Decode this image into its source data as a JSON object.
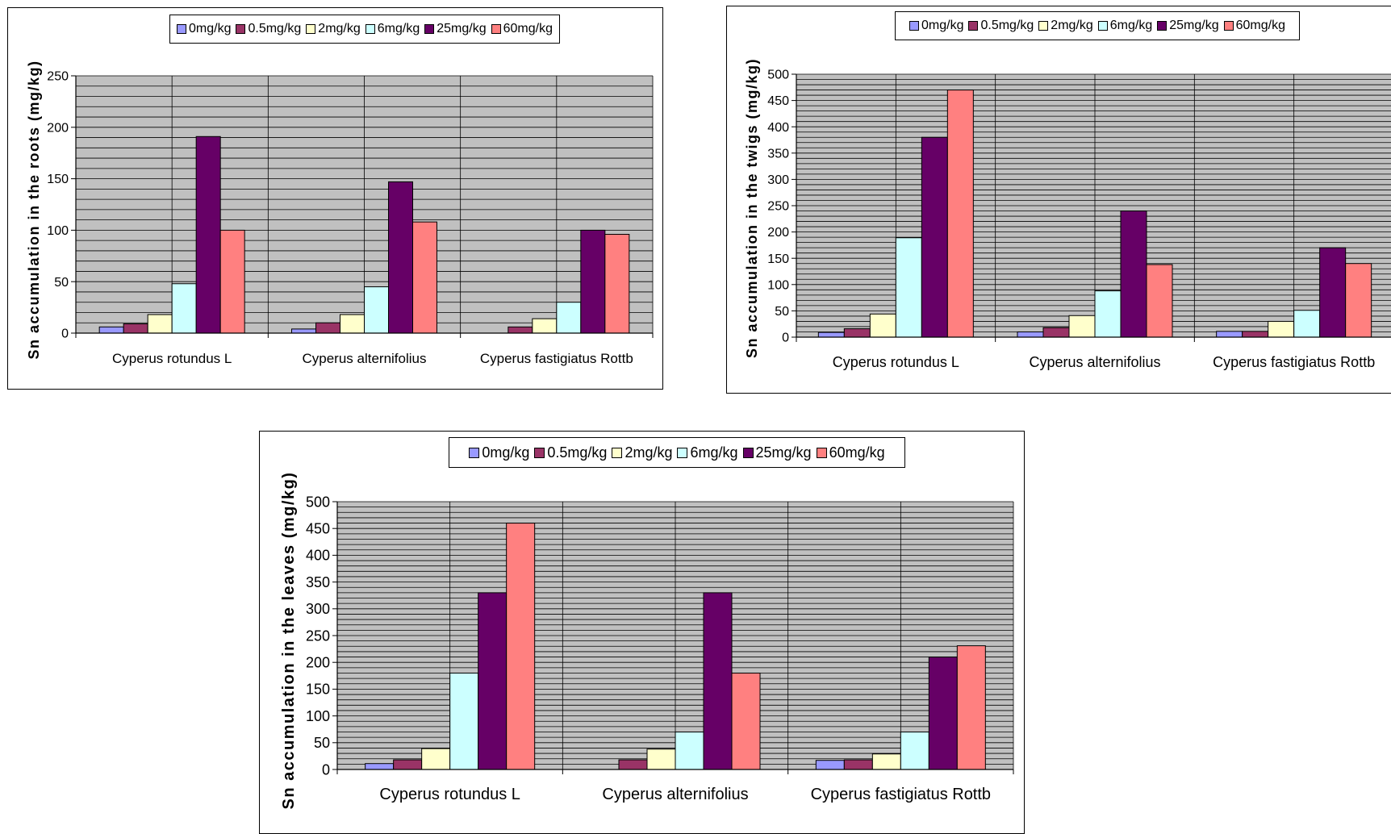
{
  "legend": {
    "series": [
      "0mg/kg",
      "0.5mg/kg",
      "2mg/kg",
      "6mg/kg",
      "25mg/kg",
      "60mg/kg"
    ],
    "colors": [
      "#9999ff",
      "#993366",
      "#ffffcc",
      "#ccffff",
      "#660066",
      "#ff8080"
    ]
  },
  "chart_data": [
    {
      "type": "bar",
      "categories": [
        "Cyperus rotundus L",
        "Cyperus alternifolius",
        "Cyperus fastigiatus Rottb"
      ],
      "ylabel": "Sn accumulation in the roots (mg/kg)",
      "ylim": [
        0,
        250
      ],
      "yticks": [
        0,
        50,
        100,
        150,
        200,
        250
      ],
      "grid": true,
      "legend_position": "top",
      "series": [
        {
          "name": "0mg/kg",
          "values": [
            6,
            4,
            0
          ]
        },
        {
          "name": "0.5mg/kg",
          "values": [
            9,
            10,
            6
          ]
        },
        {
          "name": "2mg/kg",
          "values": [
            18,
            18,
            14
          ]
        },
        {
          "name": "6mg/kg",
          "values": [
            48,
            45,
            30
          ]
        },
        {
          "name": "25mg/kg",
          "values": [
            191,
            147,
            100
          ]
        },
        {
          "name": "60mg/kg",
          "values": [
            100,
            108,
            96
          ]
        }
      ]
    },
    {
      "type": "bar",
      "categories": [
        "Cyperus rotundus L",
        "Cyperus alternifolius",
        "Cyperus fastigiatus Rottb"
      ],
      "ylabel": "Sn accumulation in the twigs (mg/kg)",
      "ylim": [
        0,
        500
      ],
      "yticks": [
        0,
        50,
        100,
        150,
        200,
        250,
        300,
        350,
        400,
        450,
        500
      ],
      "grid": true,
      "legend_position": "top",
      "series": [
        {
          "name": "0mg/kg",
          "values": [
            9,
            10,
            11
          ]
        },
        {
          "name": "0.5mg/kg",
          "values": [
            16,
            18,
            11
          ]
        },
        {
          "name": "2mg/kg",
          "values": [
            44,
            41,
            30
          ]
        },
        {
          "name": "6mg/kg",
          "values": [
            189,
            88,
            51
          ]
        },
        {
          "name": "25mg/kg",
          "values": [
            380,
            240,
            170
          ]
        },
        {
          "name": "60mg/kg",
          "values": [
            470,
            138,
            140
          ]
        }
      ]
    },
    {
      "type": "bar",
      "categories": [
        "Cyperus rotundus L",
        "Cyperus alternifolius",
        "Cyperus fastigiatus Rottb"
      ],
      "ylabel": "Sn accumulation in the leaves (mg/kg)",
      "ylim": [
        0,
        500
      ],
      "yticks": [
        0,
        50,
        100,
        150,
        200,
        250,
        300,
        350,
        400,
        450,
        500
      ],
      "grid": true,
      "legend_position": "top",
      "series": [
        {
          "name": "0mg/kg",
          "values": [
            11,
            0,
            17
          ]
        },
        {
          "name": "0.5mg/kg",
          "values": [
            18,
            18,
            18
          ]
        },
        {
          "name": "2mg/kg",
          "values": [
            39,
            38,
            29
          ]
        },
        {
          "name": "6mg/kg",
          "values": [
            180,
            70,
            70
          ]
        },
        {
          "name": "25mg/kg",
          "values": [
            330,
            330,
            210
          ]
        },
        {
          "name": "60mg/kg",
          "values": [
            460,
            180,
            231
          ]
        }
      ]
    }
  ]
}
